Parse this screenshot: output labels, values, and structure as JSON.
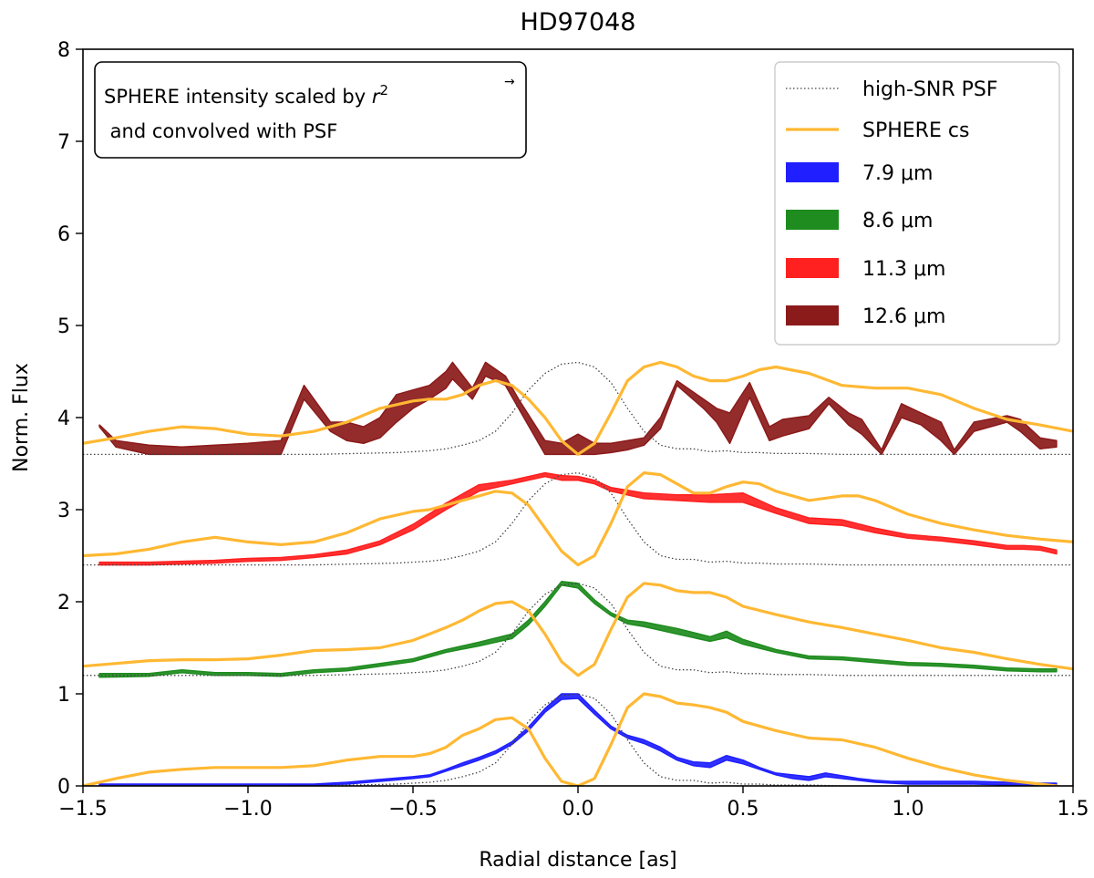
{
  "chart_data": {
    "type": "line",
    "title": "HD97048",
    "xlabel": "Radial distance [as]",
    "ylabel": "Norm. Flux",
    "xlim": [
      -1.5,
      1.5
    ],
    "ylim": [
      0,
      8
    ],
    "xticks": [
      -1.5,
      -1.0,
      -0.5,
      0.0,
      0.5,
      1.0,
      1.5
    ],
    "xtick_labels": [
      "−1.5",
      "−1.0",
      "−0.5",
      "0.0",
      "0.5",
      "1.0",
      "1.5"
    ],
    "yticks": [
      0,
      1,
      2,
      3,
      4,
      5,
      6,
      7,
      8
    ],
    "ytick_labels": [
      "0",
      "1",
      "2",
      "3",
      "4",
      "5",
      "6",
      "7",
      "8"
    ],
    "annotation": {
      "line1": "SPHERE intensity scaled by r⃗²",
      "line1_text": "SPHERE intensity scaled by ",
      "line1_symbol": "r",
      "line1_exp": "2",
      "line2": " and convolved with PSF",
      "location": "top-left"
    },
    "legend": {
      "location": "top-right",
      "entries": [
        {
          "label": "high-SNR PSF",
          "style": "dotted",
          "color": "#444444"
        },
        {
          "label": "SPHERE cs",
          "style": "line",
          "color": "#ffb833"
        },
        {
          "label": "7.9 μm",
          "style": "band",
          "color": "#1f1fff"
        },
        {
          "label": "8.6 μm",
          "style": "band",
          "color": "#1e8c1e"
        },
        {
          "label": "11.3 μm",
          "style": "band",
          "color": "#ff2020"
        },
        {
          "label": "12.6 μm",
          "style": "band",
          "color": "#8b1a1a"
        }
      ]
    },
    "psf": {
      "name": "high-SNR PSF",
      "x": [
        -1.45,
        -0.8,
        -0.55,
        -0.45,
        -0.4,
        -0.35,
        -0.3,
        -0.25,
        -0.2,
        -0.15,
        -0.1,
        -0.05,
        0.0,
        0.05,
        0.1,
        0.15,
        0.2,
        0.25,
        0.3,
        0.35,
        0.4,
        0.45,
        0.5,
        0.55,
        0.6,
        0.7,
        0.8,
        1.45
      ],
      "y": [
        0.0,
        0.0,
        0.02,
        0.04,
        0.06,
        0.1,
        0.15,
        0.25,
        0.45,
        0.7,
        0.88,
        0.98,
        1.0,
        0.95,
        0.78,
        0.5,
        0.25,
        0.1,
        0.06,
        0.06,
        0.03,
        0.04,
        0.02,
        0.02,
        0.01,
        0.01,
        0.0,
        0.0
      ]
    },
    "groups": [
      {
        "name": "7.9 μm",
        "offset": 0.0,
        "color": "#1f1fff",
        "sphere": {
          "x": [
            -1.5,
            -1.4,
            -1.3,
            -1.2,
            -1.1,
            -1.0,
            -0.9,
            -0.8,
            -0.7,
            -0.6,
            -0.5,
            -0.45,
            -0.4,
            -0.35,
            -0.3,
            -0.25,
            -0.2,
            -0.15,
            -0.1,
            -0.05,
            0.0,
            0.05,
            0.1,
            0.15,
            0.2,
            0.25,
            0.3,
            0.35,
            0.4,
            0.45,
            0.5,
            0.6,
            0.7,
            0.8,
            0.9,
            1.0,
            1.1,
            1.2,
            1.3,
            1.4,
            1.45
          ],
          "y": [
            0.0,
            0.08,
            0.15,
            0.18,
            0.2,
            0.2,
            0.2,
            0.22,
            0.28,
            0.32,
            0.32,
            0.35,
            0.42,
            0.55,
            0.62,
            0.72,
            0.74,
            0.62,
            0.3,
            0.05,
            0.0,
            0.08,
            0.45,
            0.85,
            1.0,
            0.97,
            0.9,
            0.88,
            0.85,
            0.8,
            0.7,
            0.6,
            0.52,
            0.5,
            0.42,
            0.3,
            0.2,
            0.12,
            0.06,
            0.02,
            0.0
          ]
        },
        "data": {
          "x": [
            -1.45,
            -1.3,
            -1.1,
            -0.9,
            -0.8,
            -0.7,
            -0.6,
            -0.5,
            -0.45,
            -0.4,
            -0.35,
            -0.3,
            -0.25,
            -0.2,
            -0.15,
            -0.1,
            -0.05,
            0.0,
            0.05,
            0.1,
            0.15,
            0.2,
            0.25,
            0.3,
            0.35,
            0.4,
            0.45,
            0.5,
            0.55,
            0.6,
            0.65,
            0.7,
            0.75,
            0.8,
            0.85,
            0.9,
            0.95,
            1.0,
            1.1,
            1.2,
            1.3,
            1.4,
            1.45
          ],
          "low": [
            0.0,
            0.0,
            0.0,
            0.0,
            0.01,
            0.02,
            0.05,
            0.08,
            0.1,
            0.16,
            0.22,
            0.28,
            0.35,
            0.45,
            0.6,
            0.8,
            0.94,
            0.95,
            0.78,
            0.62,
            0.52,
            0.46,
            0.38,
            0.28,
            0.22,
            0.2,
            0.28,
            0.24,
            0.18,
            0.12,
            0.08,
            0.06,
            0.1,
            0.08,
            0.06,
            0.04,
            0.03,
            0.02,
            0.02,
            0.02,
            0.01,
            0.0,
            0.0
          ],
          "high": [
            0.02,
            0.02,
            0.02,
            0.02,
            0.02,
            0.04,
            0.07,
            0.1,
            0.12,
            0.18,
            0.25,
            0.31,
            0.38,
            0.48,
            0.64,
            0.84,
            1.0,
            1.0,
            0.82,
            0.65,
            0.55,
            0.5,
            0.42,
            0.31,
            0.26,
            0.25,
            0.33,
            0.28,
            0.2,
            0.14,
            0.12,
            0.1,
            0.14,
            0.11,
            0.08,
            0.06,
            0.05,
            0.05,
            0.05,
            0.05,
            0.04,
            0.03,
            0.03
          ]
        }
      },
      {
        "name": "8.6 μm",
        "offset": 1.2,
        "color": "#1e8c1e",
        "sphere": {
          "x": [
            -1.5,
            -1.4,
            -1.3,
            -1.2,
            -1.1,
            -1.0,
            -0.9,
            -0.8,
            -0.7,
            -0.6,
            -0.5,
            -0.45,
            -0.4,
            -0.35,
            -0.3,
            -0.25,
            -0.2,
            -0.15,
            -0.1,
            -0.05,
            0.0,
            0.05,
            0.1,
            0.15,
            0.2,
            0.25,
            0.3,
            0.35,
            0.4,
            0.45,
            0.5,
            0.6,
            0.7,
            0.8,
            0.9,
            1.0,
            1.1,
            1.2,
            1.3,
            1.4,
            1.5
          ],
          "y": [
            0.1,
            0.13,
            0.16,
            0.17,
            0.17,
            0.18,
            0.22,
            0.27,
            0.28,
            0.3,
            0.38,
            0.45,
            0.52,
            0.6,
            0.7,
            0.78,
            0.8,
            0.7,
            0.45,
            0.15,
            0.0,
            0.12,
            0.5,
            0.85,
            1.0,
            0.98,
            0.92,
            0.9,
            0.9,
            0.85,
            0.75,
            0.66,
            0.58,
            0.52,
            0.45,
            0.38,
            0.3,
            0.25,
            0.18,
            0.12,
            0.07
          ]
        },
        "data": {
          "x": [
            -1.45,
            -1.3,
            -1.2,
            -1.1,
            -1.0,
            -0.9,
            -0.8,
            -0.7,
            -0.6,
            -0.5,
            -0.4,
            -0.3,
            -0.2,
            -0.15,
            -0.1,
            -0.05,
            0.0,
            0.05,
            0.1,
            0.15,
            0.2,
            0.3,
            0.4,
            0.45,
            0.5,
            0.6,
            0.7,
            0.8,
            0.9,
            1.0,
            1.1,
            1.2,
            1.3,
            1.4,
            1.45
          ],
          "low": [
            -0.02,
            -0.01,
            0.03,
            0.0,
            0.0,
            -0.01,
            0.03,
            0.05,
            0.1,
            0.15,
            0.25,
            0.32,
            0.4,
            0.55,
            0.75,
            0.98,
            0.95,
            0.78,
            0.65,
            0.56,
            0.53,
            0.45,
            0.37,
            0.41,
            0.34,
            0.25,
            0.18,
            0.17,
            0.14,
            0.11,
            0.1,
            0.08,
            0.05,
            0.04,
            0.04
          ],
          "high": [
            0.02,
            0.02,
            0.06,
            0.03,
            0.03,
            0.02,
            0.06,
            0.08,
            0.13,
            0.18,
            0.28,
            0.36,
            0.45,
            0.6,
            0.8,
            1.02,
            1.0,
            0.82,
            0.68,
            0.6,
            0.58,
            0.51,
            0.42,
            0.48,
            0.39,
            0.28,
            0.21,
            0.2,
            0.17,
            0.14,
            0.13,
            0.11,
            0.08,
            0.07,
            0.07
          ]
        }
      },
      {
        "name": "11.3 μm",
        "offset": 2.4,
        "color": "#ff2020",
        "sphere": {
          "x": [
            -1.5,
            -1.4,
            -1.3,
            -1.2,
            -1.1,
            -1.0,
            -0.9,
            -0.8,
            -0.7,
            -0.6,
            -0.5,
            -0.45,
            -0.4,
            -0.35,
            -0.3,
            -0.25,
            -0.2,
            -0.15,
            -0.1,
            -0.05,
            0.0,
            0.05,
            0.1,
            0.15,
            0.2,
            0.25,
            0.3,
            0.35,
            0.4,
            0.45,
            0.5,
            0.55,
            0.6,
            0.7,
            0.8,
            0.85,
            0.9,
            1.0,
            1.1,
            1.2,
            1.3,
            1.4,
            1.5
          ],
          "y": [
            0.1,
            0.12,
            0.17,
            0.25,
            0.3,
            0.25,
            0.22,
            0.25,
            0.35,
            0.5,
            0.58,
            0.6,
            0.65,
            0.7,
            0.75,
            0.8,
            0.78,
            0.65,
            0.4,
            0.15,
            0.0,
            0.1,
            0.45,
            0.85,
            1.0,
            0.98,
            0.88,
            0.78,
            0.78,
            0.85,
            0.9,
            0.88,
            0.8,
            0.7,
            0.75,
            0.75,
            0.7,
            0.55,
            0.45,
            0.38,
            0.32,
            0.28,
            0.25
          ]
        },
        "data": {
          "x": [
            -1.45,
            -1.3,
            -1.2,
            -1.1,
            -1.0,
            -0.9,
            -0.8,
            -0.7,
            -0.6,
            -0.5,
            -0.4,
            -0.3,
            -0.2,
            -0.1,
            -0.05,
            0.0,
            0.05,
            0.1,
            0.2,
            0.3,
            0.4,
            0.5,
            0.6,
            0.7,
            0.8,
            0.9,
            1.0,
            1.1,
            1.2,
            1.3,
            1.35,
            1.4,
            1.45
          ],
          "low": [
            0.0,
            0.0,
            0.01,
            0.02,
            0.04,
            0.05,
            0.08,
            0.12,
            0.22,
            0.38,
            0.6,
            0.8,
            0.88,
            0.96,
            0.92,
            0.92,
            0.88,
            0.8,
            0.72,
            0.7,
            0.68,
            0.68,
            0.56,
            0.45,
            0.43,
            0.35,
            0.29,
            0.26,
            0.22,
            0.17,
            0.17,
            0.16,
            0.12
          ],
          "high": [
            0.03,
            0.03,
            0.04,
            0.05,
            0.07,
            0.08,
            0.11,
            0.16,
            0.26,
            0.44,
            0.67,
            0.87,
            0.92,
            1.0,
            0.97,
            0.96,
            0.92,
            0.84,
            0.78,
            0.76,
            0.76,
            0.78,
            0.62,
            0.51,
            0.49,
            0.4,
            0.33,
            0.3,
            0.26,
            0.21,
            0.21,
            0.2,
            0.16
          ]
        }
      },
      {
        "name": "12.6 μm",
        "offset": 3.6,
        "color": "#8b1a1a",
        "sphere": {
          "x": [
            -1.5,
            -1.4,
            -1.3,
            -1.2,
            -1.1,
            -1.0,
            -0.9,
            -0.8,
            -0.7,
            -0.6,
            -0.5,
            -0.45,
            -0.4,
            -0.35,
            -0.3,
            -0.25,
            -0.2,
            -0.15,
            -0.1,
            -0.05,
            0.0,
            0.05,
            0.1,
            0.15,
            0.2,
            0.25,
            0.3,
            0.35,
            0.4,
            0.45,
            0.5,
            0.55,
            0.6,
            0.7,
            0.8,
            0.9,
            1.0,
            1.1,
            1.2,
            1.3,
            1.4,
            1.5
          ],
          "y": [
            0.12,
            0.18,
            0.25,
            0.3,
            0.28,
            0.22,
            0.2,
            0.25,
            0.35,
            0.5,
            0.58,
            0.6,
            0.6,
            0.65,
            0.75,
            0.8,
            0.75,
            0.6,
            0.4,
            0.15,
            0.0,
            0.12,
            0.45,
            0.8,
            0.95,
            1.0,
            0.95,
            0.85,
            0.8,
            0.8,
            0.85,
            0.92,
            0.95,
            0.88,
            0.75,
            0.72,
            0.72,
            0.65,
            0.5,
            0.38,
            0.32,
            0.25
          ]
        },
        "data": {
          "x": [
            -1.45,
            -1.4,
            -1.3,
            -1.2,
            -1.1,
            -1.0,
            -0.9,
            -0.83,
            -0.75,
            -0.7,
            -0.65,
            -0.6,
            -0.55,
            -0.5,
            -0.45,
            -0.4,
            -0.38,
            -0.32,
            -0.28,
            -0.22,
            -0.18,
            -0.1,
            -0.05,
            0.0,
            0.05,
            0.1,
            0.15,
            0.2,
            0.25,
            0.3,
            0.38,
            0.42,
            0.46,
            0.52,
            0.58,
            0.62,
            0.7,
            0.76,
            0.82,
            0.86,
            0.92,
            0.98,
            1.04,
            1.1,
            1.14,
            1.2,
            1.3,
            1.34,
            1.4,
            1.45
          ],
          "low": [
            0.3,
            0.08,
            0.0,
            0.0,
            0.0,
            0.0,
            0.0,
            0.6,
            0.25,
            0.15,
            0.12,
            0.18,
            0.35,
            0.5,
            0.6,
            0.72,
            0.82,
            0.6,
            0.85,
            0.75,
            0.5,
            0.0,
            0.0,
            0.0,
            0.0,
            0.02,
            0.05,
            0.1,
            0.28,
            0.75,
            0.5,
            0.35,
            0.12,
            0.62,
            0.15,
            0.2,
            0.28,
            0.55,
            0.32,
            0.22,
            0.0,
            0.4,
            0.32,
            0.15,
            0.0,
            0.25,
            0.35,
            0.25,
            0.06,
            0.08
          ],
          "high": [
            0.32,
            0.15,
            0.1,
            0.08,
            0.1,
            0.12,
            0.15,
            0.75,
            0.35,
            0.35,
            0.3,
            0.4,
            0.65,
            0.7,
            0.75,
            0.9,
            1.0,
            0.72,
            1.0,
            0.85,
            0.6,
            0.15,
            0.12,
            0.22,
            0.12,
            0.12,
            0.15,
            0.18,
            0.4,
            0.8,
            0.6,
            0.5,
            0.45,
            0.78,
            0.3,
            0.38,
            0.42,
            0.62,
            0.45,
            0.38,
            0.05,
            0.55,
            0.45,
            0.35,
            0.05,
            0.35,
            0.42,
            0.38,
            0.18,
            0.15
          ]
        }
      }
    ]
  }
}
